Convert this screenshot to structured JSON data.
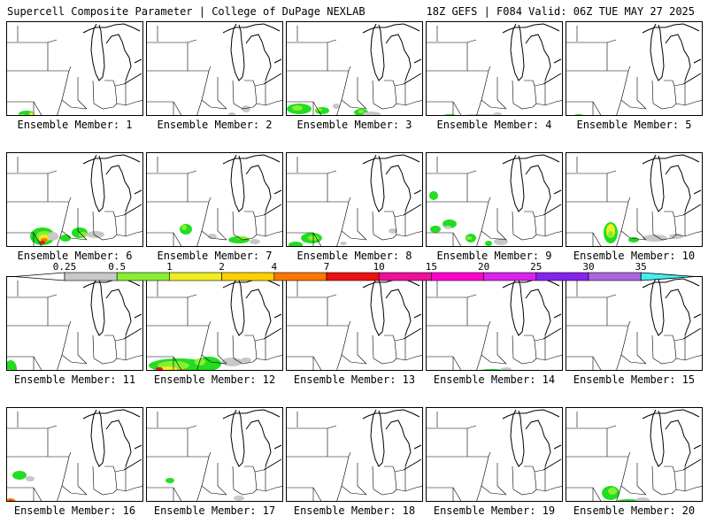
{
  "header": {
    "title": "Supercell Composite Parameter | College of DuPage NEXLAB",
    "run_info": "18Z GEFS | F084 Valid: 06Z TUE MAY 27 2025"
  },
  "colorbar": {
    "ticks": [
      "0.25",
      "0.5",
      "1",
      "2",
      "4",
      "7",
      "10",
      "15",
      "20",
      "25",
      "30",
      "35"
    ],
    "colors": [
      "#c8c8c8",
      "#22dd22",
      "#88ee33",
      "#eeee22",
      "#ffd000",
      "#ff7700",
      "#ee1111",
      "#ee1199",
      "#ff00cc",
      "#dd22ee",
      "#8822ee",
      "#aa66dd",
      "#44eeee"
    ]
  },
  "colors": {
    "gray": "#c8c8c8",
    "green": "#22dd22",
    "lightgreen": "#88ee33",
    "yellow": "#eeee22",
    "orange": "#ff7700",
    "red": "#ee1111"
  },
  "members": [
    {
      "label": "Ensemble Member: 1"
    },
    {
      "label": "Ensemble Member: 2"
    },
    {
      "label": "Ensemble Member: 3"
    },
    {
      "label": "Ensemble Member: 4"
    },
    {
      "label": "Ensemble Member: 5"
    },
    {
      "label": "Ensemble Member: 6"
    },
    {
      "label": "Ensemble Member: 7"
    },
    {
      "label": "Ensemble Member: 8"
    },
    {
      "label": "Ensemble Member: 9"
    },
    {
      "label": "Ensemble Member: 10"
    },
    {
      "label": "Ensemble Member: 11"
    },
    {
      "label": "Ensemble Member: 12"
    },
    {
      "label": "Ensemble Member: 13"
    },
    {
      "label": "Ensemble Member: 14"
    },
    {
      "label": "Ensemble Member: 15"
    },
    {
      "label": "Ensemble Member: 16"
    },
    {
      "label": "Ensemble Member: 17"
    },
    {
      "label": "Ensemble Member: 18"
    },
    {
      "label": "Ensemble Member: 19"
    },
    {
      "label": "Ensemble Member: 20"
    }
  ]
}
